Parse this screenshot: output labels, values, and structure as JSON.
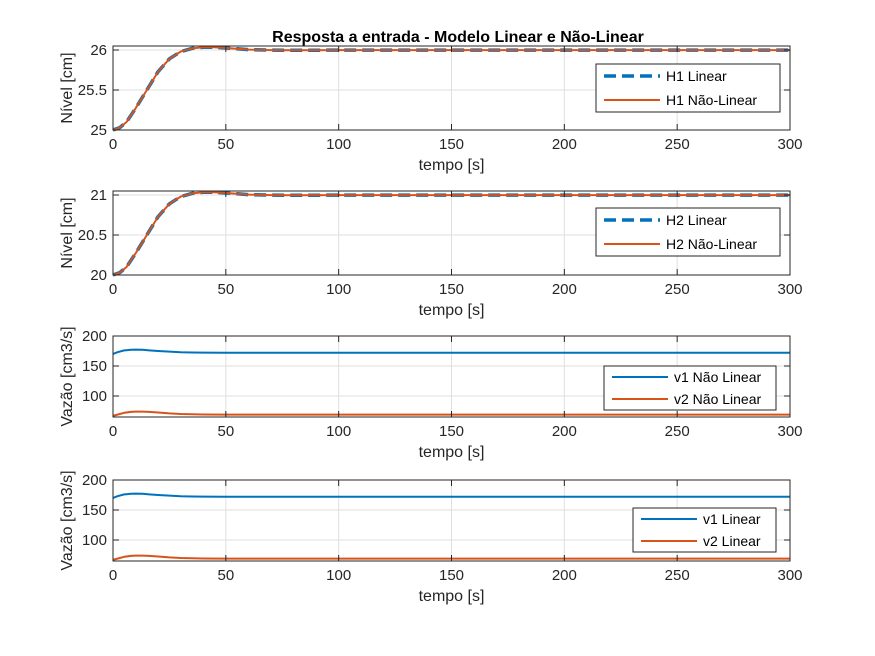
{
  "figure": {
    "title": "Resposta a entrada - Modelo Linear e Não-Linear"
  },
  "chart_data": [
    {
      "type": "line",
      "xlabel": "tempo [s]",
      "ylabel": "Nível [cm]",
      "xlim": [
        0,
        300
      ],
      "ylim": [
        25,
        26.05
      ],
      "xticks": [
        0,
        50,
        100,
        150,
        200,
        250,
        300
      ],
      "yticks": [
        25,
        25.5,
        26
      ],
      "ytick_labels": [
        "25",
        "25.5",
        "26"
      ],
      "grid": true,
      "legend_position": "top-right",
      "series": [
        {
          "name": "H1 Linear",
          "style": "dashed",
          "color": "#0072BD",
          "x": [
            0,
            3,
            6,
            10,
            15,
            20,
            25,
            30,
            35,
            40,
            45,
            50,
            55,
            60,
            70,
            80,
            100,
            150,
            200,
            250,
            300
          ],
          "y": [
            25.0,
            25.03,
            25.1,
            25.27,
            25.5,
            25.73,
            25.89,
            25.98,
            26.02,
            26.035,
            26.035,
            26.025,
            26.015,
            26.005,
            25.998,
            25.997,
            25.998,
            25.998,
            25.998,
            25.998,
            25.998
          ]
        },
        {
          "name": "H1 Não-Linear",
          "style": "solid",
          "color": "#D95319",
          "x": [
            0,
            3,
            6,
            10,
            15,
            20,
            25,
            30,
            35,
            40,
            45,
            50,
            55,
            60,
            70,
            80,
            100,
            150,
            200,
            250,
            300
          ],
          "y": [
            25.0,
            25.03,
            25.1,
            25.27,
            25.5,
            25.73,
            25.89,
            25.98,
            26.02,
            26.035,
            26.035,
            26.025,
            26.015,
            26.005,
            25.998,
            25.997,
            25.998,
            25.998,
            25.998,
            25.998,
            25.998
          ]
        }
      ]
    },
    {
      "type": "line",
      "xlabel": "tempo [s]",
      "ylabel": "Nível [cm]",
      "xlim": [
        0,
        300
      ],
      "ylim": [
        20,
        21.05
      ],
      "xticks": [
        0,
        50,
        100,
        150,
        200,
        250,
        300
      ],
      "yticks": [
        20,
        20.5,
        21
      ],
      "ytick_labels": [
        "20",
        "20.5",
        "21"
      ],
      "grid": true,
      "legend_position": "top-right",
      "series": [
        {
          "name": "H2 Linear",
          "style": "dashed",
          "color": "#0072BD",
          "x": [
            0,
            3,
            6,
            10,
            15,
            20,
            25,
            30,
            35,
            40,
            45,
            50,
            55,
            60,
            70,
            80,
            100,
            150,
            200,
            250,
            300
          ],
          "y": [
            20.0,
            20.03,
            20.1,
            20.27,
            20.5,
            20.73,
            20.89,
            20.98,
            21.02,
            21.035,
            21.035,
            21.025,
            21.015,
            21.005,
            20.998,
            20.997,
            20.998,
            20.998,
            20.998,
            20.998,
            20.998
          ]
        },
        {
          "name": "H2 Não-Linear",
          "style": "solid",
          "color": "#D95319",
          "x": [
            0,
            3,
            6,
            10,
            15,
            20,
            25,
            30,
            35,
            40,
            45,
            50,
            55,
            60,
            70,
            80,
            100,
            150,
            200,
            250,
            300
          ],
          "y": [
            20.0,
            20.03,
            20.1,
            20.27,
            20.5,
            20.73,
            20.89,
            20.98,
            21.02,
            21.035,
            21.035,
            21.025,
            21.015,
            21.005,
            20.998,
            20.997,
            20.998,
            20.998,
            20.998,
            20.998,
            20.998
          ]
        }
      ]
    },
    {
      "type": "line",
      "xlabel": "tempo [s]",
      "ylabel": "Vazão [cm3/s]",
      "xlim": [
        0,
        300
      ],
      "ylim": [
        65,
        200
      ],
      "xticks": [
        0,
        50,
        100,
        150,
        200,
        250,
        300
      ],
      "yticks": [
        100,
        150,
        200
      ],
      "ytick_labels": [
        "100",
        "150",
        "200"
      ],
      "grid": true,
      "legend_position": "bottom-right",
      "series": [
        {
          "name": "v1 Não Linear",
          "style": "solid",
          "color": "#0072BD",
          "x": [
            0,
            2,
            5,
            8,
            10,
            13,
            16,
            20,
            25,
            30,
            35,
            40,
            50,
            60,
            80,
            100,
            150,
            200,
            250,
            300
          ],
          "y": [
            170,
            173,
            176,
            177,
            177.2,
            177,
            176,
            175,
            174,
            173,
            172.5,
            172.2,
            172,
            172,
            172,
            172,
            172,
            172,
            172,
            172
          ]
        },
        {
          "name": "v2 Não Linear",
          "style": "solid",
          "color": "#D95319",
          "x": [
            0,
            2,
            5,
            8,
            10,
            13,
            16,
            20,
            25,
            30,
            35,
            40,
            50,
            60,
            80,
            100,
            150,
            200,
            250,
            300
          ],
          "y": [
            67,
            69,
            72,
            73.5,
            74,
            74,
            73.5,
            72.5,
            71,
            70,
            69.5,
            69.2,
            69,
            69,
            69,
            69,
            69,
            69,
            69,
            69
          ]
        }
      ]
    },
    {
      "type": "line",
      "xlabel": "tempo [s]",
      "ylabel": "Vazão [cm3/s]",
      "xlim": [
        0,
        300
      ],
      "ylim": [
        65,
        200
      ],
      "xticks": [
        0,
        50,
        100,
        150,
        200,
        250,
        300
      ],
      "yticks": [
        100,
        150,
        200
      ],
      "ytick_labels": [
        "100",
        "150",
        "200"
      ],
      "grid": true,
      "legend_position": "bottom-right",
      "series": [
        {
          "name": "v1 Linear",
          "style": "solid",
          "color": "#0072BD",
          "x": [
            0,
            2,
            5,
            8,
            10,
            13,
            16,
            20,
            25,
            30,
            35,
            40,
            50,
            60,
            80,
            100,
            150,
            200,
            250,
            300
          ],
          "y": [
            170,
            173,
            176,
            177,
            177.2,
            177,
            176,
            175,
            174,
            173,
            172.5,
            172.2,
            172,
            172,
            172,
            172,
            172,
            172,
            172,
            172
          ]
        },
        {
          "name": "v2 Linear",
          "style": "solid",
          "color": "#D95319",
          "x": [
            0,
            2,
            5,
            8,
            10,
            13,
            16,
            20,
            25,
            30,
            35,
            40,
            50,
            60,
            80,
            100,
            150,
            200,
            250,
            300
          ],
          "y": [
            67,
            69,
            72,
            73.5,
            74,
            74,
            73.5,
            72.5,
            71,
            70,
            69.5,
            69.2,
            69,
            69,
            69,
            69,
            69,
            69,
            69,
            69
          ]
        }
      ]
    }
  ]
}
